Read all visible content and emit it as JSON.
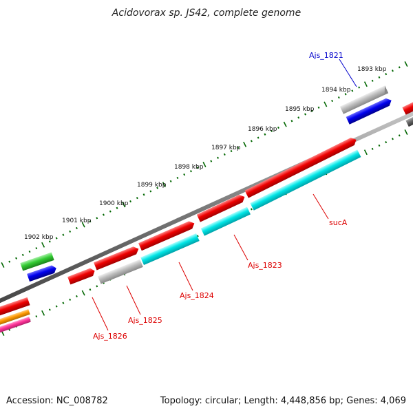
{
  "title": "Acidovorax sp. JS42, complete genome",
  "footer": {
    "accession": "Accession: NC_008782",
    "summary": "Topology: circular; Length: 4,448,856 bp; Genes: 4,069"
  },
  "kbp_ticks": [
    "1893 kbp",
    "1894 kbp",
    "1895 kbp",
    "1896 kbp",
    "1897 kbp",
    "1898 kbp",
    "1899 kbp",
    "1900 kbp",
    "1901 kbp",
    "1902 kbp"
  ],
  "gene_labels": {
    "ajs_1821": "Ajs_1821",
    "suca": "sucA",
    "ajs_1823": "Ajs_1823",
    "ajs_1824": "Ajs_1824",
    "ajs_1825": "Ajs_1825",
    "ajs_1826": "Ajs_1826"
  },
  "colors": {
    "red": "#ee0000",
    "cyan": "#00e5e5",
    "gray": "#b8b8b8",
    "blue": "#0000ee",
    "green": "#33cc33",
    "orange": "#ff9900",
    "magenta": "#ff3399",
    "backbone": "#777777",
    "tick": "#006600",
    "label_red": "#dd0000",
    "label_blue": "#0000cc"
  }
}
